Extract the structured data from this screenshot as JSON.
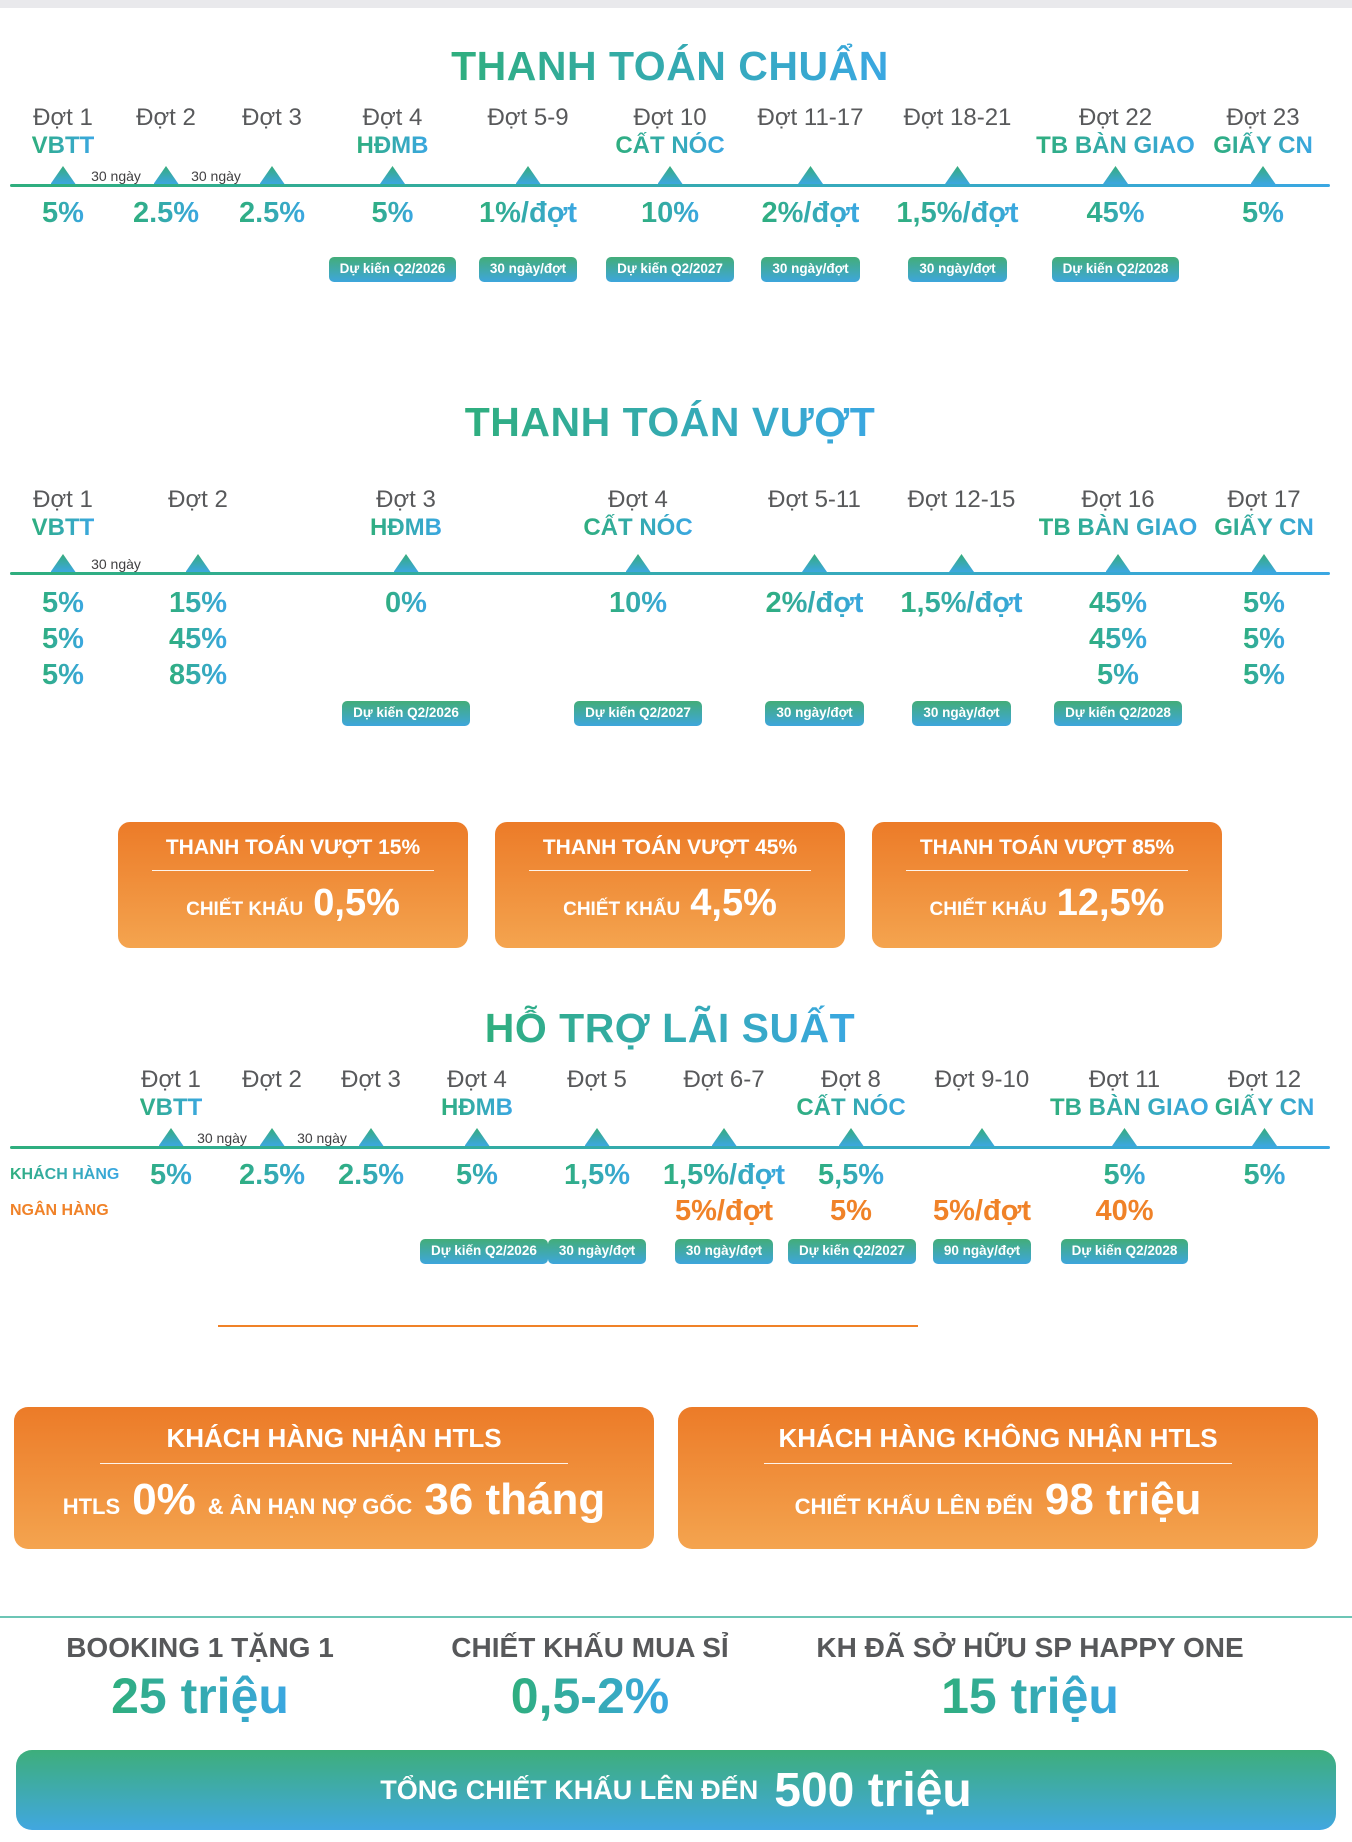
{
  "colors": {
    "gradient_green": "#2fae7e",
    "gradient_blue": "#3aa7e2",
    "orange": "#f08228",
    "orange_box_top": "#ec7b28",
    "orange_box_bottom": "#f4a44f",
    "phase_gray": "#58595b",
    "divider_teal": "#6cc5b5"
  },
  "sections": [
    {
      "title": "THANH TOÁN CHUẨN",
      "columns": [
        {
          "phase": "Đợt 1",
          "milestone": "VBTT",
          "values": [
            "5%"
          ],
          "gap_after": "30 ngày"
        },
        {
          "phase": "Đợt 2",
          "values": [
            "2.5%"
          ],
          "gap_after": "30 ngày"
        },
        {
          "phase": "Đợt 3",
          "values": [
            "2.5%"
          ]
        },
        {
          "phase": "Đợt 4",
          "milestone": "HĐMB",
          "values": [
            "5%"
          ],
          "badge": "Dự kiến Q2/2026"
        },
        {
          "phase": "Đợt 5-9",
          "values": [
            "1%/đợt"
          ],
          "badge": "30 ngày/đợt"
        },
        {
          "phase": "Đợt 10",
          "milestone": "CẤT NÓC",
          "values": [
            "10%"
          ],
          "badge": "Dự kiến Q2/2027"
        },
        {
          "phase": "Đợt 11-17",
          "values": [
            "2%/đợt"
          ],
          "badge": "30 ngày/đợt"
        },
        {
          "phase": "Đợt 18-21",
          "values": [
            "1,5%/đợt"
          ],
          "badge": "30 ngày/đợt"
        },
        {
          "phase": "Đợt 22",
          "milestone": "TB BÀN GIAO",
          "values": [
            "45%"
          ],
          "badge": "Dự kiến Q2/2028"
        },
        {
          "phase": "Đợt 23",
          "milestone": "GIẤY CN",
          "values": [
            "5%"
          ]
        }
      ]
    },
    {
      "title": "THANH TOÁN VƯỢT",
      "columns": [
        {
          "phase": "Đợt 1",
          "milestone": "VBTT",
          "values": [
            "5%",
            "5%",
            "5%"
          ],
          "gap_after": "30 ngày"
        },
        {
          "phase": "Đợt 2",
          "values": [
            "15%",
            "45%",
            "85%"
          ]
        },
        {
          "phase": "Đợt 3",
          "milestone": "HĐMB",
          "values": [
            "0%"
          ],
          "badge": "Dự kiến Q2/2026"
        },
        {
          "phase": "Đợt 4",
          "milestone": "CẤT NÓC",
          "values": [
            "10%"
          ],
          "badge": "Dự kiến Q2/2027"
        },
        {
          "phase": "Đợt 5-11",
          "values": [
            "2%/đợt"
          ],
          "badge": "30 ngày/đợt"
        },
        {
          "phase": "Đợt 12-15",
          "values": [
            "1,5%/đợt"
          ],
          "badge": "30 ngày/đợt"
        },
        {
          "phase": "Đợt 16",
          "milestone": "TB BÀN GIAO",
          "values": [
            "45%",
            "45%",
            "5%"
          ],
          "badge": "Dự kiến Q2/2028"
        },
        {
          "phase": "Đợt 17",
          "milestone": "GIẤY CN",
          "values": [
            "5%",
            "5%",
            "5%"
          ]
        }
      ],
      "promo_boxes": [
        {
          "title": "THANH TOÁN VƯỢT 15%",
          "discount_label": "CHIẾT KHẤU",
          "discount_value": "0,5%"
        },
        {
          "title": "THANH TOÁN VƯỢT 45%",
          "discount_label": "CHIẾT KHẤU",
          "discount_value": "4,5%"
        },
        {
          "title": "THANH TOÁN VƯỢT 85%",
          "discount_label": "CHIẾT KHẤU",
          "discount_value": "12,5%"
        }
      ]
    },
    {
      "title": "HỖ TRỢ LÃI SUẤT",
      "row_labels": {
        "customer": "KHÁCH HÀNG",
        "bank": "NGÂN HÀNG"
      },
      "columns": [
        {
          "phase": "Đợt 1",
          "milestone": "VBTT",
          "customer": "5%",
          "gap_after": "30 ngày"
        },
        {
          "phase": "Đợt 2",
          "customer": "2.5%",
          "gap_after": "30 ngày"
        },
        {
          "phase": "Đợt 3",
          "customer": "2.5%"
        },
        {
          "phase": "Đợt 4",
          "milestone": "HĐMB",
          "customer": "5%",
          "badge": "Dự kiến Q2/2026"
        },
        {
          "phase": "Đợt 5",
          "customer": "1,5%",
          "badge": "30 ngày/đợt"
        },
        {
          "phase": "Đợt 6-7",
          "customer": "1,5%/đợt",
          "bank": "5%/đợt",
          "badge": "30 ngày/đợt"
        },
        {
          "phase": "Đợt 8",
          "milestone": "CẤT NÓC",
          "customer": "5,5%",
          "bank": "5%",
          "badge": "Dự kiến Q2/2027"
        },
        {
          "phase": "Đợt 9-10",
          "bank": "5%/đợt",
          "badge": "90 ngày/đợt"
        },
        {
          "phase": "Đợt 11",
          "milestone": "TB BÀN GIAO",
          "customer": "5%",
          "bank": "40%",
          "badge": "Dự kiến Q2/2028"
        },
        {
          "phase": "Đợt 12",
          "milestone": "GIẤY CN",
          "customer": "5%"
        }
      ]
    }
  ],
  "htls_boxes": [
    {
      "title": "KHÁCH HÀNG NHẬN HTLS",
      "body": [
        {
          "text": "HTLS",
          "size": "small"
        },
        {
          "text": "0%",
          "size": "big"
        },
        {
          "text": "& ÂN HẠN NỢ GỐC",
          "size": "small"
        },
        {
          "text": "36 tháng",
          "size": "big"
        }
      ]
    },
    {
      "title": "KHÁCH HÀNG KHÔNG NHẬN HTLS",
      "body": [
        {
          "text": "CHIẾT KHẤU LÊN ĐẾN",
          "size": "small"
        },
        {
          "text": "98 triệu",
          "size": "big"
        }
      ]
    }
  ],
  "bonus_offers": [
    {
      "title": "BOOKING 1 TẶNG 1",
      "value": "25 triệu"
    },
    {
      "title": "CHIẾT KHẤU MUA SỈ",
      "value": "0,5-2%"
    },
    {
      "title": "KH ĐÃ SỞ HỮU SP HAPPY ONE",
      "value": "15 triệu"
    }
  ],
  "total_bar": {
    "label": "TỔNG CHIẾT KHẤU LÊN ĐẾN",
    "value": "500 triệu"
  }
}
